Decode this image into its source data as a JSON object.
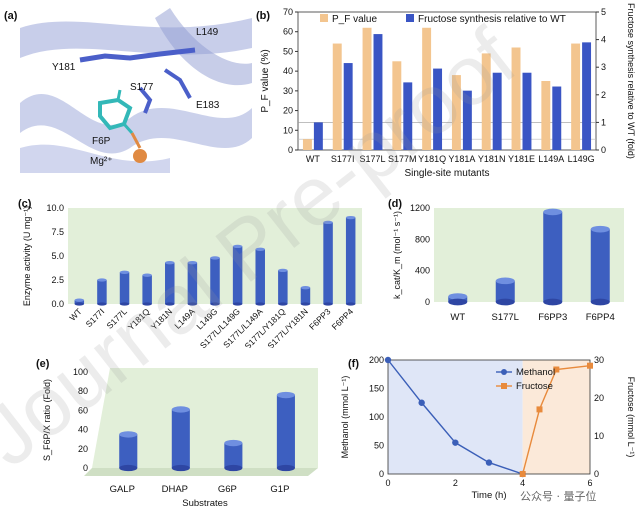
{
  "panel_labels": [
    "(a)",
    "(b)",
    "(c)",
    "(d)",
    "(e)",
    "(f)"
  ],
  "structure_labels": {
    "l149": "L149",
    "y181": "Y181",
    "s177": "S177",
    "e183": "E183",
    "f6p": "F6P",
    "mg": "Mg²⁺"
  },
  "watermark_text": "Journal Pre-proof",
  "footer": "公众号 · 量子位",
  "colors": {
    "orange": "#f3c58f",
    "blue": "#3a55c4",
    "bar3d": "#3d5fc0",
    "panel_bg": "#e2efd9",
    "methanol": "#3b5fb8",
    "fructose": "#e88a3c"
  },
  "chart_data": [
    {
      "id": "b",
      "type": "bar",
      "categories": [
        "WT",
        "S177I",
        "S177L",
        "S177M",
        "Y181Q",
        "Y181A",
        "Y181N",
        "Y181E",
        "L149A",
        "L149G"
      ],
      "series": [
        {
          "name": "P_F value",
          "values": [
            5.5,
            54,
            62,
            45,
            62,
            38,
            49,
            52,
            35,
            54
          ]
        },
        {
          "name": "Fructose synthesis relative to WT",
          "values": [
            1.0,
            3.15,
            4.2,
            2.45,
            2.95,
            2.15,
            2.8,
            2.8,
            2.3,
            3.9
          ]
        }
      ],
      "ylabel": "P_F value (%)",
      "ylabel2": "Fructose synthesis relative to WT (fold)",
      "xlabel": "Single-site mutants",
      "ylim": [
        0,
        70
      ],
      "y2lim": [
        0,
        5
      ],
      "yticks": [
        0,
        10,
        20,
        30,
        40,
        50,
        60,
        70
      ],
      "y2ticks": [
        0,
        1,
        2,
        3,
        4,
        5
      ],
      "legend": [
        "P_F value",
        "Fructose synthesis relative to WT"
      ]
    },
    {
      "id": "c",
      "type": "bar",
      "categories": [
        "WT",
        "S177I",
        "S177L",
        "Y181Q",
        "Y181N",
        "L149A",
        "L149G",
        "S177L/L149G",
        "S177L/L149A",
        "S177L/Y181Q",
        "S177L/Y181N",
        "F6PP3",
        "F6PP4"
      ],
      "values": [
        0.4,
        2.5,
        3.3,
        3.0,
        4.3,
        4.3,
        4.8,
        6.0,
        5.7,
        3.5,
        1.7,
        8.5,
        9.0
      ],
      "ylabel": "Enzyme activity (U mg⁻¹)",
      "ylim": [
        0,
        10
      ],
      "yticks": [
        "0.0",
        "2.5",
        "5.0",
        "7.5",
        "10.0"
      ]
    },
    {
      "id": "d",
      "type": "bar",
      "categories": [
        "WT",
        "S177L",
        "F6PP3",
        "F6PP4"
      ],
      "values": [
        70,
        270,
        1150,
        930
      ],
      "ylabel": "k_cat/K_m (mol⁻¹ s⁻¹)",
      "ylim": [
        0,
        1200
      ],
      "yticks": [
        0,
        400,
        800,
        1200
      ]
    },
    {
      "id": "e",
      "type": "bar",
      "categories": [
        "GALP",
        "DHAP",
        "G6P",
        "G1P"
      ],
      "values": [
        35,
        61,
        26,
        76
      ],
      "ylabel": "S_F6P/X ratio (Fold)",
      "xlabel": "Substrates",
      "ylim": [
        0,
        100
      ],
      "yticks": [
        0,
        20,
        40,
        60,
        80,
        100
      ]
    },
    {
      "id": "f",
      "type": "line",
      "series": [
        {
          "name": "Methanol",
          "x": [
            0,
            1,
            2,
            3,
            4
          ],
          "y": [
            200,
            125,
            55,
            20,
            0
          ]
        },
        {
          "name": "Fructose",
          "x": [
            4,
            4.5,
            5,
            6
          ],
          "y": [
            0,
            17,
            27.5,
            28.5
          ]
        }
      ],
      "xlabel": "Time (h)",
      "ylabel": "Methanol (mmol L⁻¹)",
      "ylabel2": "Fructose (mmol L⁻¹)",
      "xlim": [
        0,
        6
      ],
      "ylim": [
        0,
        200
      ],
      "y2lim": [
        0,
        30
      ],
      "xticks": [
        0,
        2,
        4,
        6
      ],
      "yticks": [
        0,
        50,
        100,
        150,
        200
      ],
      "y2ticks": [
        0,
        10,
        20,
        30
      ],
      "legend": [
        "Methanol",
        "Fructose"
      ]
    }
  ]
}
